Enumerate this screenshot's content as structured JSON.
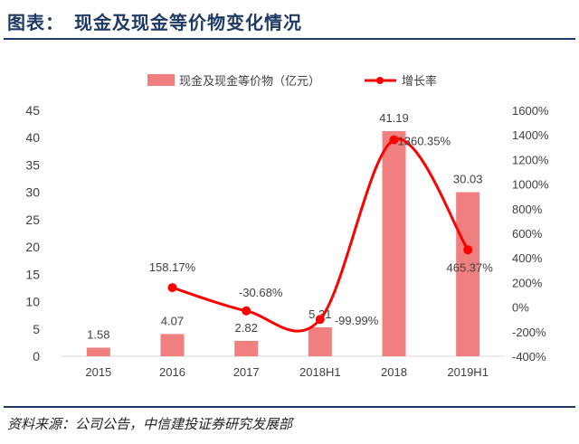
{
  "header": {
    "title": "图表：　现金及现金等价物变化情况"
  },
  "footer": {
    "source": "资料来源：公司公告，中信建投证券研究发展部"
  },
  "chart_data": {
    "type": "bar",
    "categories": [
      "2015",
      "2016",
      "2017",
      "2018H1",
      "2018",
      "2019H1"
    ],
    "series": [
      {
        "name": "现金及现金等价物（亿元）",
        "type": "bar",
        "axis": "left",
        "color": "#f08080",
        "values": [
          1.58,
          4.07,
          2.82,
          5.31,
          41.19,
          30.03
        ],
        "labels": [
          "1.58",
          "4.07",
          "2.82",
          "5.31",
          "41.19",
          "30.03"
        ]
      },
      {
        "name": "增长率",
        "type": "line",
        "axis": "right",
        "smooth": true,
        "color": "#ff0000",
        "values": [
          null,
          158.17,
          -30.68,
          -99.99,
          1360.35,
          465.37
        ],
        "labels": [
          "",
          "158.17%",
          "-30.68%",
          "-99.99%",
          "1360.35%",
          "465.37%"
        ]
      }
    ],
    "y_left": {
      "ylim": [
        0,
        45
      ],
      "ticks": [
        0,
        5,
        10,
        15,
        20,
        25,
        30,
        35,
        40,
        45
      ]
    },
    "y_right": {
      "ylim": [
        -400,
        1600
      ],
      "ticks": [
        -400,
        -200,
        0,
        200,
        400,
        600,
        800,
        1000,
        1200,
        1400,
        1600
      ],
      "tick_labels": [
        "-400%",
        "-200%",
        "0%",
        "200%",
        "400%",
        "600%",
        "800%",
        "1000%",
        "1200%",
        "1400%",
        "1600%"
      ]
    },
    "legend": {
      "placement": "top-center"
    },
    "grid": false
  }
}
